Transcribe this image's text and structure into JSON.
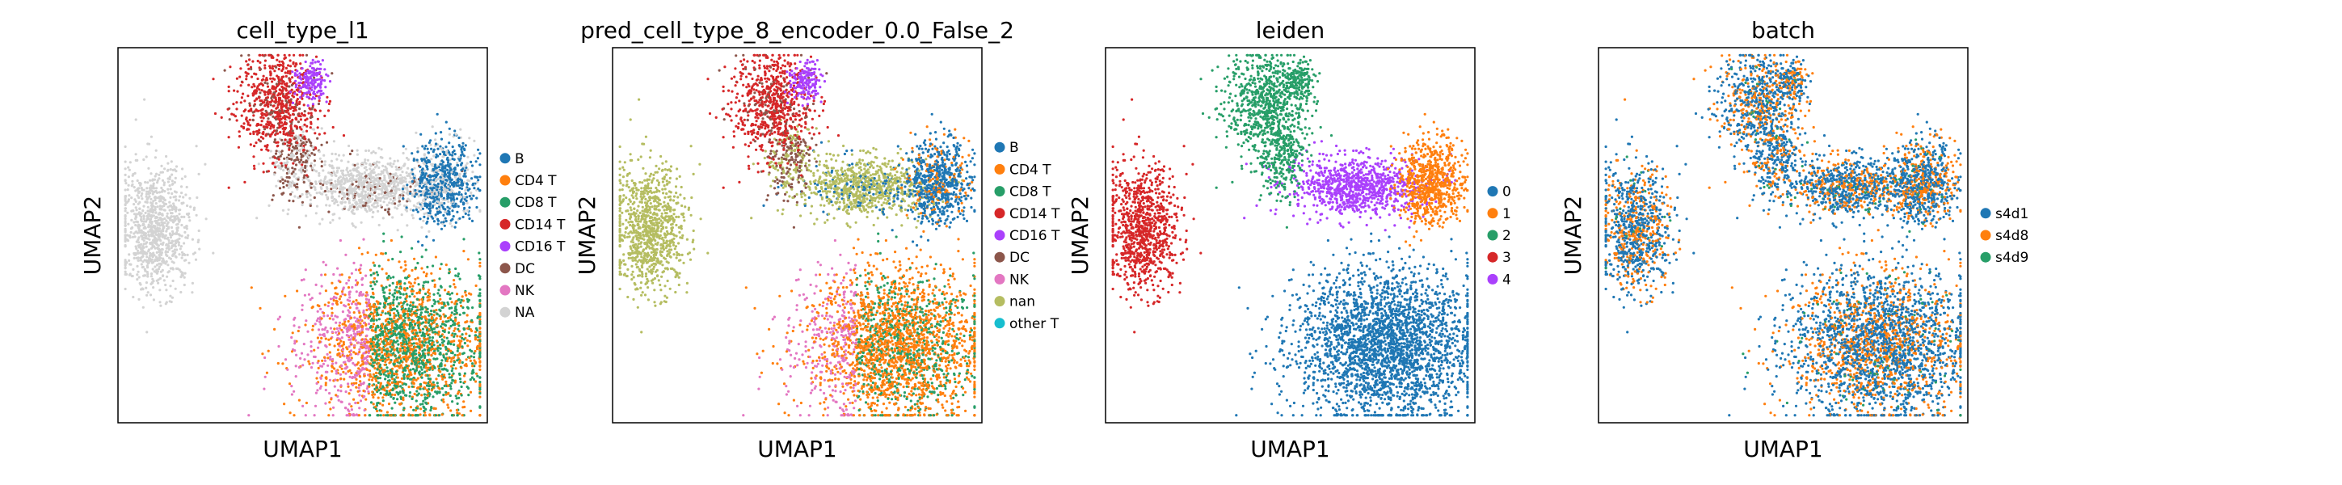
{
  "figure": {
    "background": "#ffffff"
  },
  "chart_data": [
    {
      "type": "scatter",
      "title": "cell_type_l1",
      "xlabel": "UMAP1",
      "ylabel": "UMAP2",
      "grid": false,
      "legend_placement": "right",
      "legend": [
        {
          "label": "B",
          "color": "#1f77b4"
        },
        {
          "label": "CD4 T",
          "color": "#ff7f0e"
        },
        {
          "label": "CD8 T",
          "color": "#279e68"
        },
        {
          "label": "CD14 T",
          "color": "#d62728"
        },
        {
          "label": "CD16 T",
          "color": "#aa40fc"
        },
        {
          "label": "DC",
          "color": "#8c564b"
        },
        {
          "label": "NK",
          "color": "#e377c2"
        },
        {
          "label": "NA",
          "color": "#d3d3d3"
        }
      ]
    },
    {
      "type": "scatter",
      "title": "pred_cell_type_8_encoder_0.0_False_2",
      "xlabel": "UMAP1",
      "ylabel": "UMAP2",
      "grid": false,
      "legend_placement": "right",
      "legend": [
        {
          "label": "B",
          "color": "#1f77b4"
        },
        {
          "label": "CD4 T",
          "color": "#ff7f0e"
        },
        {
          "label": "CD8 T",
          "color": "#279e68"
        },
        {
          "label": "CD14 T",
          "color": "#d62728"
        },
        {
          "label": "CD16 T",
          "color": "#aa40fc"
        },
        {
          "label": "DC",
          "color": "#8c564b"
        },
        {
          "label": "NK",
          "color": "#e377c2"
        },
        {
          "label": "nan",
          "color": "#b5bd61"
        },
        {
          "label": "other T",
          "color": "#17becf"
        }
      ]
    },
    {
      "type": "scatter",
      "title": "leiden",
      "xlabel": "UMAP1",
      "ylabel": "UMAP2",
      "grid": false,
      "legend_placement": "right",
      "legend": [
        {
          "label": "0",
          "color": "#1f77b4"
        },
        {
          "label": "1",
          "color": "#ff7f0e"
        },
        {
          "label": "2",
          "color": "#279e68"
        },
        {
          "label": "3",
          "color": "#d62728"
        },
        {
          "label": "4",
          "color": "#aa40fc"
        }
      ]
    },
    {
      "type": "scatter",
      "title": "batch",
      "xlabel": "UMAP1",
      "ylabel": "UMAP2",
      "grid": false,
      "legend_placement": "right",
      "legend": [
        {
          "label": "s4d1",
          "color": "#1f77b4"
        },
        {
          "label": "s4d8",
          "color": "#ff7f0e"
        },
        {
          "label": "s4d9",
          "color": "#279e68"
        }
      ]
    }
  ]
}
